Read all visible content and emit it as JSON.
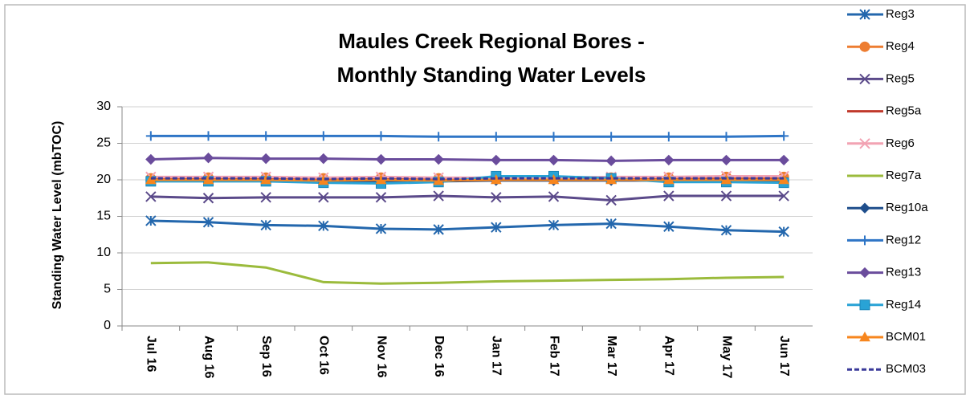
{
  "chart_data": {
    "type": "line",
    "title": [
      "Maules Creek Regional Bores -",
      "Monthly Standing Water Levels"
    ],
    "y_label": "Standing Water Level (mbTOC)",
    "categories": [
      "Jul 16",
      "Aug 16",
      "Sep 16",
      "Oct 16",
      "Nov 16",
      "Dec 16",
      "Jan 17",
      "Feb 17",
      "Mar 17",
      "Apr 17",
      "May 17",
      "Jun 17"
    ],
    "ylim": [
      0,
      30
    ],
    "yticks": [
      0,
      5,
      10,
      15,
      20,
      25,
      30
    ],
    "grid": true,
    "legend": "right",
    "series": [
      {
        "name": "Reg3",
        "color": "#2367ad",
        "marker": "asterisk",
        "values": [
          14.4,
          14.2,
          13.8,
          13.7,
          13.3,
          13.2,
          13.5,
          13.8,
          14.0,
          13.6,
          13.1,
          12.9
        ]
      },
      {
        "name": "Reg4",
        "color": "#ed7d31",
        "marker": "circle",
        "values": [
          20.2,
          20.3,
          20.3,
          20.2,
          20.3,
          20.2,
          20.2,
          20.2,
          20.3,
          20.3,
          20.4,
          20.4
        ]
      },
      {
        "name": "Reg5",
        "color": "#5b4a8a",
        "marker": "x",
        "values": [
          17.7,
          17.5,
          17.6,
          17.6,
          17.6,
          17.8,
          17.6,
          17.7,
          17.2,
          17.8,
          17.8,
          17.8
        ]
      },
      {
        "name": "Reg5a",
        "color": "#c0392b",
        "marker": "none",
        "values": [
          20.1,
          20.1,
          20.1,
          20.0,
          20.1,
          20.0,
          20.1,
          20.1,
          20.1,
          20.1,
          20.1,
          20.1
        ]
      },
      {
        "name": "Reg6",
        "color": "#f2a3b3",
        "marker": "x",
        "values": [
          20.4,
          20.4,
          20.4,
          20.3,
          20.4,
          20.3,
          20.3,
          20.3,
          20.4,
          20.4,
          20.5,
          20.5
        ]
      },
      {
        "name": "Reg7a",
        "color": "#9bbb3c",
        "marker": "none",
        "values": [
          8.6,
          8.7,
          8.0,
          6.0,
          5.8,
          5.9,
          6.1,
          6.2,
          6.3,
          6.4,
          6.6,
          6.7
        ]
      },
      {
        "name": "Reg10a",
        "color": "#1f4e8c",
        "marker": "diamond",
        "values": [
          19.9,
          19.9,
          19.9,
          19.8,
          19.8,
          19.8,
          19.9,
          19.9,
          19.9,
          19.9,
          19.9,
          19.9
        ]
      },
      {
        "name": "Reg12",
        "color": "#2e75c6",
        "marker": "plus",
        "values": [
          26.0,
          26.0,
          26.0,
          26.0,
          26.0,
          25.9,
          25.9,
          25.9,
          25.9,
          25.9,
          25.9,
          26.0
        ]
      },
      {
        "name": "Reg13",
        "color": "#6a4c9c",
        "marker": "diamond",
        "values": [
          22.8,
          23.0,
          22.9,
          22.9,
          22.8,
          22.8,
          22.7,
          22.7,
          22.6,
          22.7,
          22.7,
          22.7
        ]
      },
      {
        "name": "Reg14",
        "color": "#29a3d6",
        "marker": "square",
        "values": [
          19.8,
          19.8,
          19.8,
          19.6,
          19.5,
          19.7,
          20.5,
          20.5,
          20.2,
          19.7,
          19.7,
          19.6
        ]
      },
      {
        "name": "BCM01",
        "color": "#f7861e",
        "marker": "triangle",
        "values": [
          20.0,
          20.0,
          20.0,
          19.9,
          20.0,
          19.9,
          20.0,
          20.0,
          20.0,
          20.0,
          20.0,
          20.0
        ]
      },
      {
        "name": "BCM03",
        "color": "#3a3a9a",
        "marker": "dash",
        "values": [
          20.2,
          20.2,
          20.2,
          20.1,
          20.2,
          20.1,
          20.2,
          20.2,
          20.2,
          20.2,
          20.2,
          20.2
        ]
      }
    ]
  }
}
